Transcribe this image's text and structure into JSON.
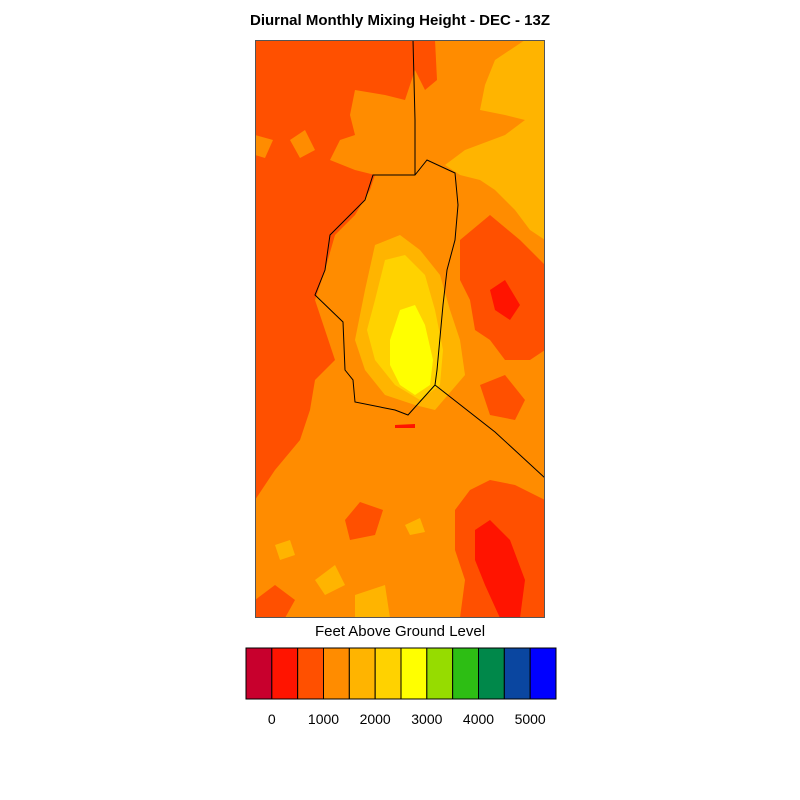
{
  "title": "Diurnal Monthly Mixing Height - DEC - 13Z",
  "legend": {
    "title": "Feet Above Ground Level",
    "bins": [
      {
        "color": "#c8002d"
      },
      {
        "color": "#ff1400"
      },
      {
        "color": "#ff5000"
      },
      {
        "color": "#ff8c00"
      },
      {
        "color": "#ffb400"
      },
      {
        "color": "#ffd200"
      },
      {
        "color": "#ffff00"
      },
      {
        "color": "#96dc00"
      },
      {
        "color": "#2dbe14"
      },
      {
        "color": "#00884a"
      },
      {
        "color": "#0a46a0"
      },
      {
        "color": "#0000ff"
      }
    ],
    "tick_labels": [
      "0",
      "1000",
      "2000",
      "3000",
      "4000",
      "5000"
    ]
  },
  "colors": {
    "level_0_1000": "#ff1400",
    "level_1000_1500": "#ff5000",
    "level_1500_2000": "#ff8c00",
    "level_2000_2500": "#ffb400",
    "level_2500_3000": "#ffd200",
    "level_3000_3500": "#ffff00"
  }
}
